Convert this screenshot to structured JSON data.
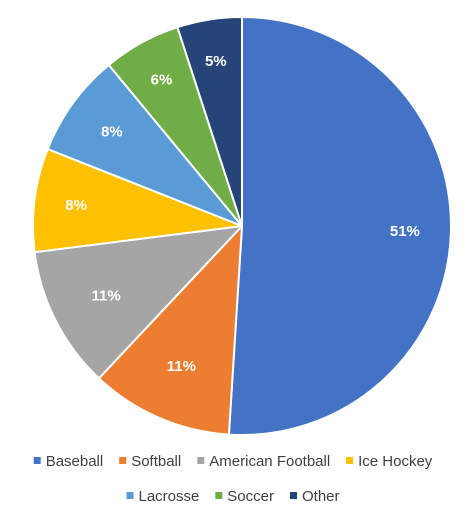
{
  "chart_data": {
    "type": "pie",
    "title": "",
    "slices": [
      {
        "label": "Baseball",
        "value": 51,
        "color": "#4472C4",
        "text": "51%"
      },
      {
        "label": "Softball",
        "value": 11,
        "color": "#ED7D31",
        "text": "11%"
      },
      {
        "label": "American Football",
        "value": 11,
        "color": "#A5A5A5",
        "text": "11%"
      },
      {
        "label": "Ice Hockey",
        "value": 8,
        "color": "#FFC000",
        "text": "8%"
      },
      {
        "label": "Lacrosse",
        "value": 8,
        "color": "#5B9BD5",
        "text": "8%"
      },
      {
        "label": "Soccer",
        "value": 6,
        "color": "#70AD47",
        "text": "6%"
      },
      {
        "label": "Other",
        "value": 5,
        "color": "#264478",
        "text": "5%"
      }
    ],
    "legend_position": "bottom"
  }
}
